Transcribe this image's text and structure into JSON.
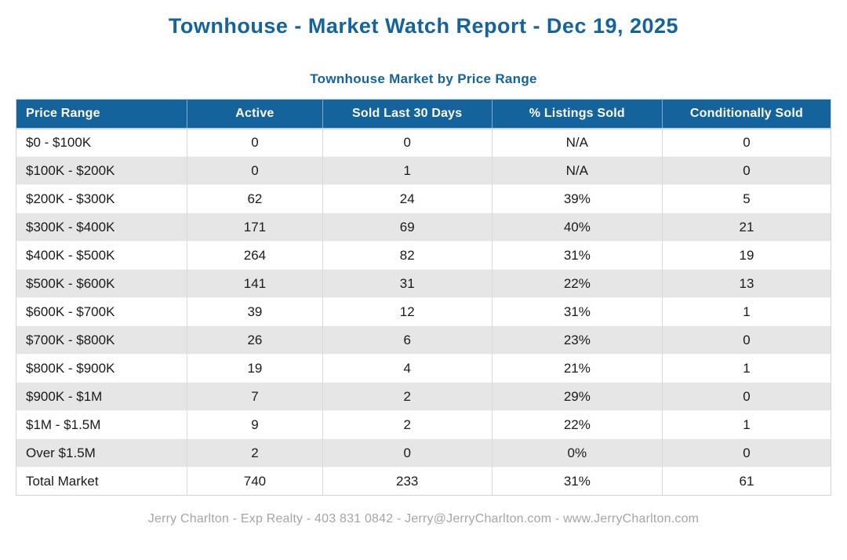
{
  "header": {
    "title": "Townhouse - Market Watch Report - Dec 19, 2025"
  },
  "table": {
    "title": "Townhouse Market by Price Range",
    "columns": [
      "Price Range",
      "Active",
      "Sold Last 30 Days",
      "% Listings Sold",
      "Conditionally Sold"
    ],
    "rows": [
      {
        "price_range": "$0 - $100K",
        "active": "0",
        "sold_last_30_days": "0",
        "pct_listings_sold": "N/A",
        "conditionally_sold": "0"
      },
      {
        "price_range": "$100K - $200K",
        "active": "0",
        "sold_last_30_days": "1",
        "pct_listings_sold": "N/A",
        "conditionally_sold": "0"
      },
      {
        "price_range": "$200K - $300K",
        "active": "62",
        "sold_last_30_days": "24",
        "pct_listings_sold": "39%",
        "conditionally_sold": "5"
      },
      {
        "price_range": "$300K - $400K",
        "active": "171",
        "sold_last_30_days": "69",
        "pct_listings_sold": "40%",
        "conditionally_sold": "21"
      },
      {
        "price_range": "$400K - $500K",
        "active": "264",
        "sold_last_30_days": "82",
        "pct_listings_sold": "31%",
        "conditionally_sold": "19"
      },
      {
        "price_range": "$500K - $600K",
        "active": "141",
        "sold_last_30_days": "31",
        "pct_listings_sold": "22%",
        "conditionally_sold": "13"
      },
      {
        "price_range": "$600K - $700K",
        "active": "39",
        "sold_last_30_days": "12",
        "pct_listings_sold": "31%",
        "conditionally_sold": "1"
      },
      {
        "price_range": "$700K - $800K",
        "active": "26",
        "sold_last_30_days": "6",
        "pct_listings_sold": "23%",
        "conditionally_sold": "0"
      },
      {
        "price_range": "$800K - $900K",
        "active": "19",
        "sold_last_30_days": "4",
        "pct_listings_sold": "21%",
        "conditionally_sold": "1"
      },
      {
        "price_range": "$900K - $1M",
        "active": "7",
        "sold_last_30_days": "2",
        "pct_listings_sold": "29%",
        "conditionally_sold": "0"
      },
      {
        "price_range": "$1M - $1.5M",
        "active": "9",
        "sold_last_30_days": "2",
        "pct_listings_sold": "22%",
        "conditionally_sold": "1"
      },
      {
        "price_range": "Over $1.5M",
        "active": "2",
        "sold_last_30_days": "0",
        "pct_listings_sold": "0%",
        "conditionally_sold": "0"
      },
      {
        "price_range": "Total Market",
        "active": "740",
        "sold_last_30_days": "233",
        "pct_listings_sold": "31%",
        "conditionally_sold": "61"
      }
    ]
  },
  "footer": {
    "text": "Jerry Charlton - Exp Realty - 403 831 0842 - Jerry@JerryCharlton.com - www.JerryCharlton.com"
  },
  "colors": {
    "accent_blue": "#15639c",
    "stripe_gray": "#e6e6e6",
    "footer_gray": "#a5a5a5"
  }
}
